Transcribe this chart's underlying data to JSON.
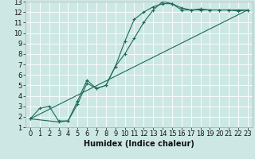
{
  "xlabel": "Humidex (Indice chaleur)",
  "bg_color": "#cde8e4",
  "line_color": "#1a6b5a",
  "xlim": [
    -0.5,
    23.5
  ],
  "ylim": [
    1,
    13
  ],
  "xticks": [
    0,
    1,
    2,
    3,
    4,
    5,
    6,
    7,
    8,
    9,
    10,
    11,
    12,
    13,
    14,
    15,
    16,
    17,
    18,
    19,
    20,
    21,
    22,
    23
  ],
  "yticks": [
    1,
    2,
    3,
    4,
    5,
    6,
    7,
    8,
    9,
    10,
    11,
    12,
    13
  ],
  "curve1_x": [
    0,
    1,
    2,
    3,
    4,
    5,
    6,
    7,
    8,
    9,
    10,
    11,
    12,
    13,
    14,
    15,
    16,
    17,
    18,
    19,
    20,
    21,
    22,
    23
  ],
  "curve1_y": [
    1.8,
    2.8,
    3.0,
    1.6,
    1.6,
    3.2,
    5.2,
    4.7,
    5.0,
    6.8,
    9.2,
    11.3,
    12.0,
    12.5,
    12.8,
    12.8,
    12.4,
    12.2,
    12.3,
    12.2,
    12.2,
    12.2,
    12.2,
    12.2
  ],
  "curve2_x": [
    0,
    3,
    4,
    5,
    6,
    7,
    8,
    9,
    10,
    11,
    12,
    13,
    14,
    15,
    16,
    17,
    18,
    19,
    20,
    21,
    22,
    23
  ],
  "curve2_y": [
    1.8,
    1.5,
    1.6,
    3.5,
    5.5,
    4.7,
    5.0,
    6.8,
    8.0,
    9.5,
    11.0,
    12.2,
    13.0,
    12.8,
    12.2,
    12.2,
    12.2,
    12.2,
    12.2,
    12.2,
    12.1,
    12.2
  ],
  "curve3_x": [
    0,
    23
  ],
  "curve3_y": [
    1.8,
    12.2
  ],
  "tick_fontsize": 6,
  "xlabel_fontsize": 7
}
